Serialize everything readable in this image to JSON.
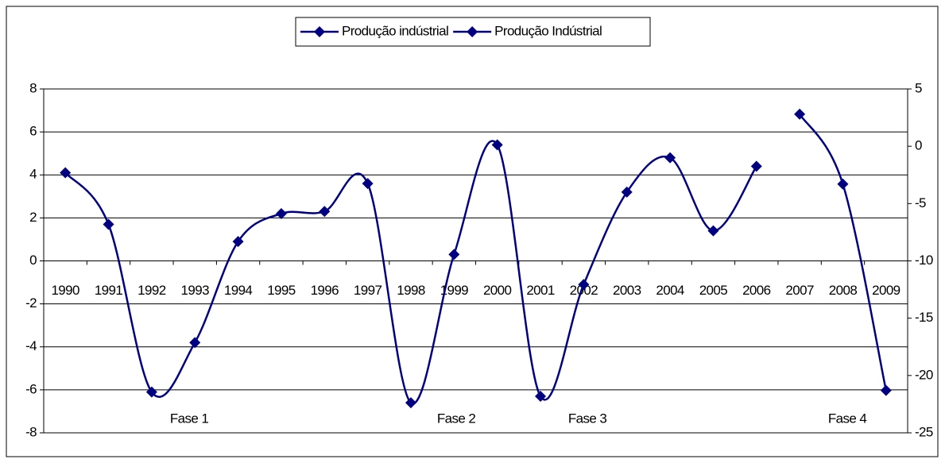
{
  "chart_data": {
    "type": "line",
    "categories": [
      "1990",
      "1991",
      "1992",
      "1993",
      "1994",
      "1995",
      "1996",
      "1997",
      "1998",
      "1999",
      "2000",
      "2001",
      "2002",
      "2003",
      "2004",
      "2005",
      "2006",
      "2007",
      "2008",
      "2009"
    ],
    "series": [
      {
        "name": "Produção indústrial",
        "color": "#000080",
        "axis": "y",
        "values": [
          4.1,
          1.7,
          -6.1,
          -3.8,
          0.9,
          2.2,
          2.3,
          3.6,
          -6.6,
          0.3,
          5.4,
          -6.3,
          -1.1,
          3.2,
          4.8,
          1.4,
          4.4,
          null,
          null,
          null
        ]
      },
      {
        "name": "Produção Indústrial",
        "color": "#000080",
        "axis": "y2",
        "values": [
          null,
          null,
          null,
          null,
          null,
          null,
          null,
          null,
          null,
          null,
          null,
          null,
          null,
          null,
          null,
          null,
          null,
          2.8,
          -3.3,
          -21.3
        ]
      }
    ],
    "annotations": [
      "Fase 1",
      "Fase 2",
      "Fase 3",
      "Fase 4"
    ],
    "ylim": [
      -8,
      8
    ],
    "yticks": [
      -8,
      -6,
      -4,
      -2,
      0,
      2,
      4,
      6,
      8
    ],
    "y2lim": [
      -25,
      5
    ],
    "y2ticks": [
      -25,
      -20,
      -15,
      -10,
      -5,
      0,
      5
    ],
    "grid": true,
    "legend": "top"
  }
}
